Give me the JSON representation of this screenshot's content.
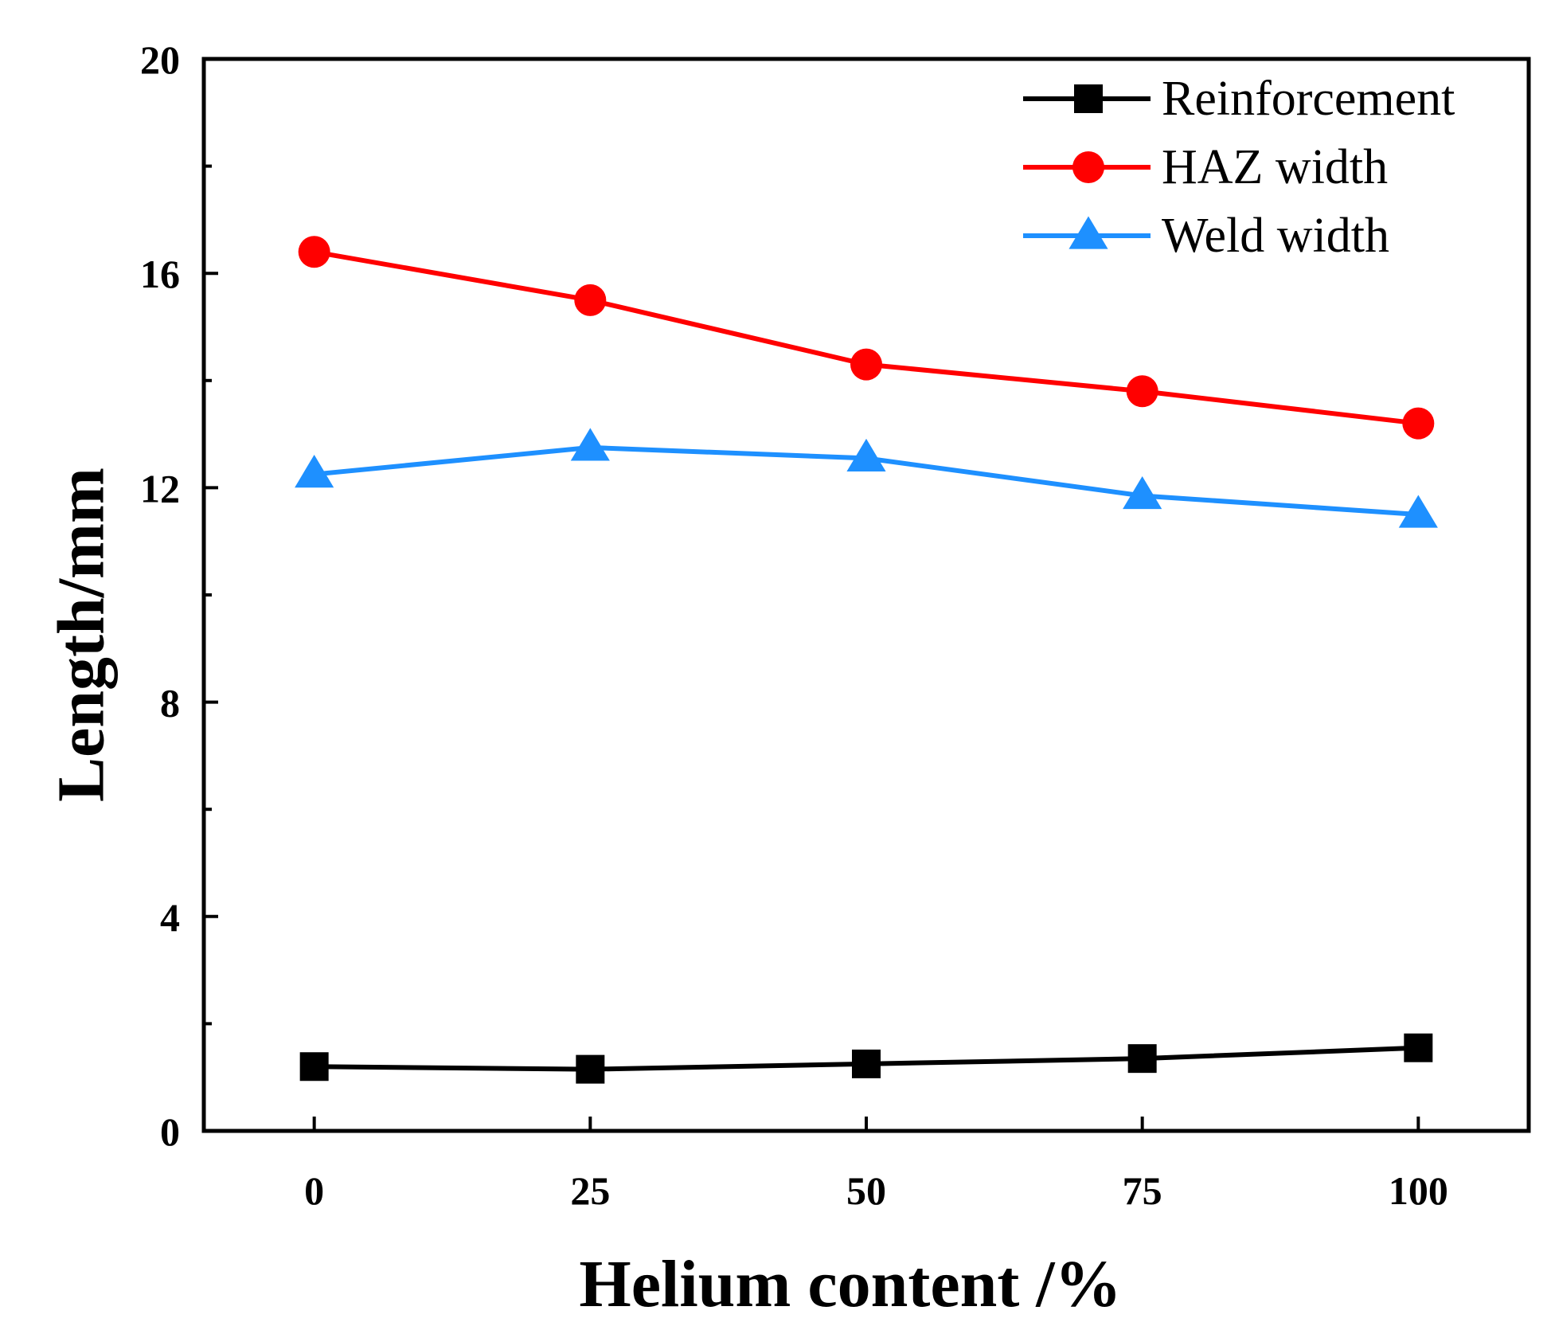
{
  "chart_data": {
    "type": "line",
    "title": "",
    "xlabel": "Helium content /%",
    "ylabel": "Length/mm",
    "x": [
      0,
      25,
      50,
      75,
      100
    ],
    "x_tick_labels": [
      "0",
      "25",
      "50",
      "75",
      "100"
    ],
    "xlim": [
      -10,
      110
    ],
    "ylim": [
      0,
      20
    ],
    "y_ticks": [
      0,
      4,
      8,
      12,
      16,
      20
    ],
    "y_tick_labels": [
      "0",
      "4",
      "8",
      "12",
      "16",
      "20"
    ],
    "grid": false,
    "legend_position": "top-right",
    "series": [
      {
        "name": "Reinforcement",
        "color": "#000000",
        "marker": "square",
        "values": [
          1.2,
          1.15,
          1.25,
          1.35,
          1.55
        ]
      },
      {
        "name": "HAZ width",
        "color": "#ff0000",
        "marker": "circle",
        "values": [
          16.4,
          15.5,
          14.3,
          13.8,
          13.2
        ]
      },
      {
        "name": "Weld width",
        "color": "#1e90ff",
        "marker": "triangle",
        "values": [
          12.25,
          12.75,
          12.55,
          11.85,
          11.5
        ]
      }
    ]
  }
}
